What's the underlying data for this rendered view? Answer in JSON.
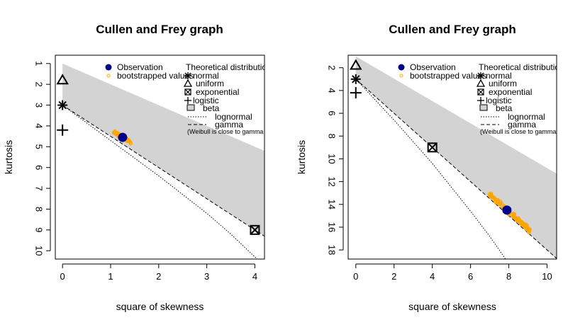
{
  "chart_data": [
    {
      "type": "scatter",
      "title": "Cullen and Frey graph",
      "xlabel": "square of skewness",
      "ylabel": "kurtosis",
      "xlim": [
        -0.15,
        4.2
      ],
      "ylim": [
        10.4,
        0.6
      ],
      "y_reversed": true,
      "xticks": [
        0,
        1,
        2,
        3,
        4
      ],
      "yticks": [
        1,
        2,
        3,
        4,
        5,
        6,
        7,
        8,
        9,
        10
      ],
      "beta_region": {
        "upper": [
          [
            0,
            1
          ],
          [
            4.2,
            5.2
          ]
        ],
        "lower": [
          [
            0,
            3
          ],
          [
            1,
            4.5
          ],
          [
            2,
            6
          ],
          [
            3,
            7.5
          ],
          [
            4,
            9
          ],
          [
            4.2,
            9.3
          ]
        ]
      },
      "lognormal_curve": [
        [
          0,
          3
        ],
        [
          0.5,
          3.85
        ],
        [
          1,
          4.7
        ],
        [
          1.5,
          5.55
        ],
        [
          2,
          6.4
        ],
        [
          2.5,
          7.3
        ],
        [
          3,
          8.2
        ],
        [
          3.5,
          9.2
        ],
        [
          4,
          10.3
        ],
        [
          4.2,
          10.7
        ]
      ],
      "gamma_curve": [
        [
          0,
          3
        ],
        [
          4.2,
          9.3
        ]
      ],
      "observation": {
        "x": 1.25,
        "y": 4.55
      },
      "bootstrap_cloud": {
        "x_range": [
          1.05,
          1.42
        ],
        "y_center_slope": 1.5,
        "n": 60
      },
      "distributions": [
        {
          "name": "normal",
          "x": 0,
          "y": 3
        },
        {
          "name": "uniform",
          "x": 0,
          "y": 1.8
        },
        {
          "name": "exponential",
          "x": 4,
          "y": 9
        },
        {
          "name": "logistic",
          "x": 0,
          "y": 4.2
        }
      ],
      "legend_left": {
        "observation": "Observation",
        "bootstrapped": "bootstrapped values"
      },
      "legend_right": {
        "heading": "Theoretical distributions",
        "normal": "normal",
        "uniform": "uniform",
        "exponential": "exponential",
        "logistic": "logistic",
        "beta": "beta",
        "lognormal": "lognormal",
        "gamma": "gamma",
        "note": "(Weibull is close to gamma and lognormal)"
      },
      "colors": {
        "observation": "#00008B",
        "bootstrapped": "#FFA500",
        "beta_region": "#D3D3D3"
      }
    },
    {
      "type": "scatter",
      "title": "Cullen and Frey graph",
      "xlabel": "square of skewness",
      "ylabel": "kurtosis",
      "xlim": [
        -0.4,
        10.5
      ],
      "ylim": [
        18.8,
        0.9
      ],
      "y_reversed": true,
      "xticks": [
        0,
        2,
        4,
        6,
        8,
        10
      ],
      "yticks": [
        2,
        4,
        6,
        8,
        10,
        12,
        14,
        16,
        18
      ],
      "beta_region": {
        "upper": [
          [
            0,
            1
          ],
          [
            10.5,
            11.3
          ]
        ],
        "lower": [
          [
            0,
            3
          ],
          [
            4,
            9
          ],
          [
            8,
            15
          ],
          [
            10.5,
            18.75
          ]
        ]
      },
      "lognormal_curve": [
        [
          0,
          3
        ],
        [
          1,
          4.8
        ],
        [
          2,
          6.6
        ],
        [
          3,
          8.5
        ],
        [
          4,
          10.4
        ],
        [
          5,
          12.5
        ],
        [
          6,
          14.6
        ],
        [
          7,
          16.8
        ],
        [
          7.5,
          18
        ],
        [
          7.9,
          19
        ]
      ],
      "gamma_curve": [
        [
          0,
          3
        ],
        [
          10.5,
          18.75
        ]
      ],
      "observation": {
        "x": 7.9,
        "y": 14.5
      },
      "bootstrap_cloud": {
        "x_range": [
          7.0,
          9.1
        ],
        "y_center_slope": 1.5,
        "n": 150
      },
      "distributions": [
        {
          "name": "normal",
          "x": 0,
          "y": 3
        },
        {
          "name": "uniform",
          "x": 0,
          "y": 1.8
        },
        {
          "name": "exponential",
          "x": 4,
          "y": 9
        },
        {
          "name": "logistic",
          "x": 0,
          "y": 4.2
        }
      ],
      "legend_left": {
        "observation": "Observation",
        "bootstrapped": "bootstrapped values"
      },
      "legend_right": {
        "heading": "Theoretical distributions",
        "normal": "normal",
        "uniform": "uniform",
        "exponential": "exponential",
        "logistic": "logistic",
        "beta": "beta",
        "lognormal": "lognormal",
        "gamma": "gamma",
        "note": "(Weibull is close to gamma and lognormal)"
      },
      "colors": {
        "observation": "#00008B",
        "bootstrapped": "#FFA500",
        "beta_region": "#D3D3D3"
      }
    }
  ]
}
